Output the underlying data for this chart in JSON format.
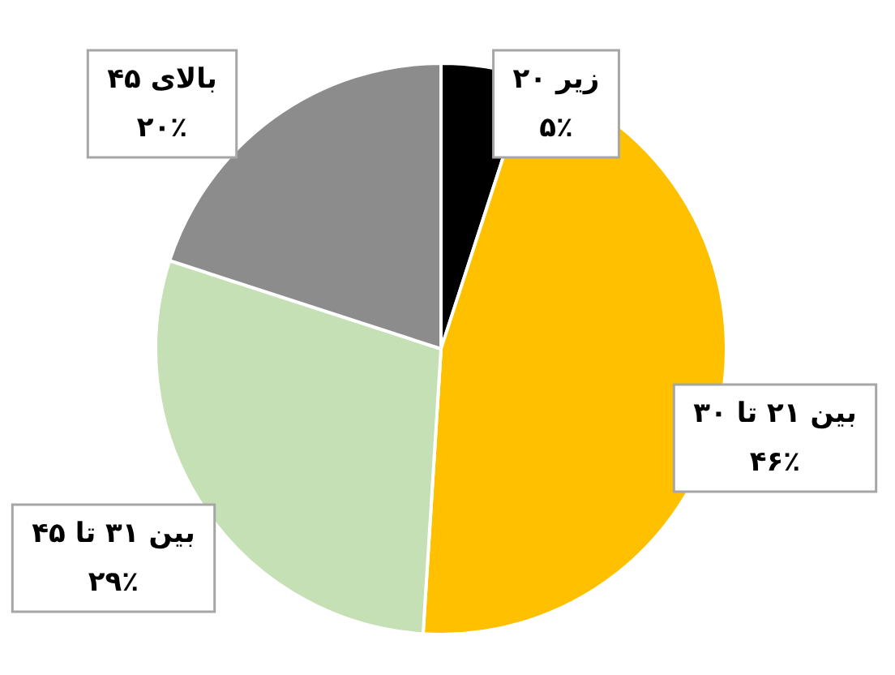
{
  "chart_data": {
    "type": "pie",
    "categories": [
      "زیر ۲۰",
      "بین ۲۱ تا ۳۰",
      "بین ۳۱ تا ۴۵",
      "بالای ۴۵"
    ],
    "values": [
      5,
      46,
      29,
      20
    ],
    "value_labels": [
      "۵٪",
      "۴۶٪",
      "۲۹٪",
      "۲۰٪"
    ],
    "colors": [
      "#000000",
      "#ffc000",
      "#c5e0b4",
      "#8c8c8c"
    ]
  }
}
